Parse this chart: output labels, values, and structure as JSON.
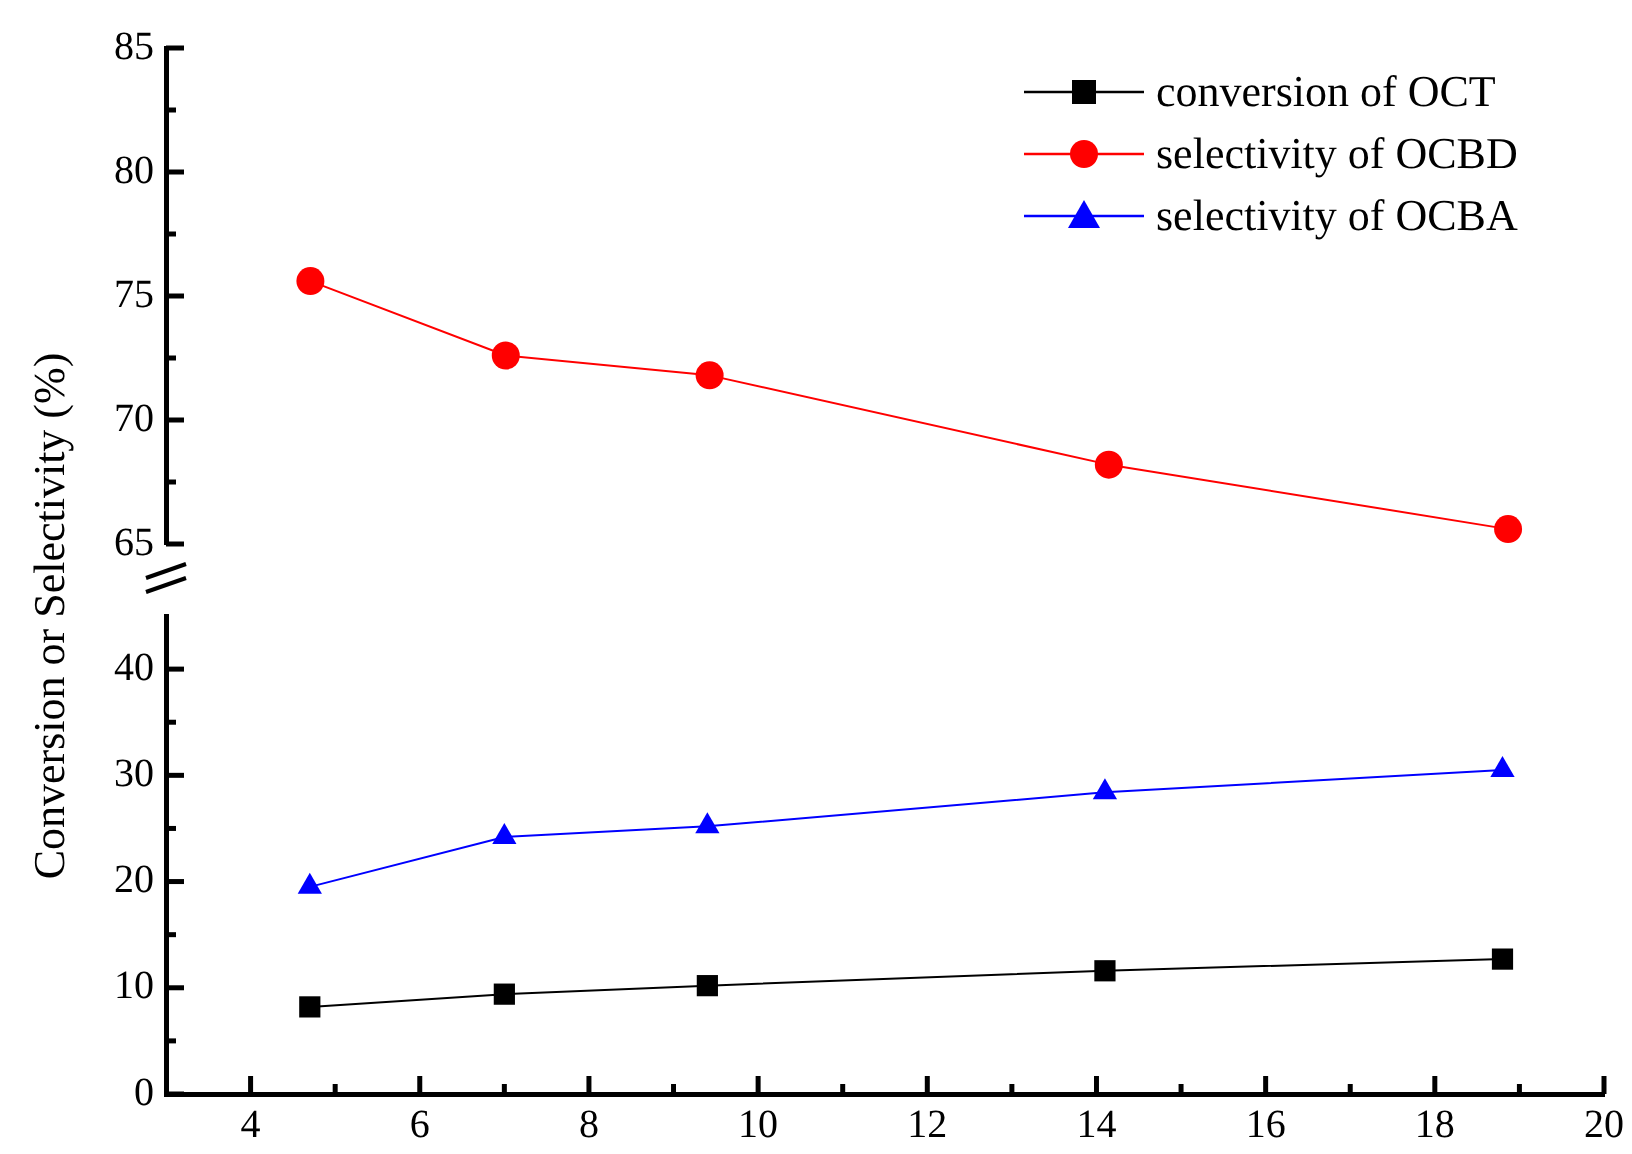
{
  "chart_data": [
    {
      "type": "line",
      "x": [
        4.7,
        7,
        9.4,
        14.1,
        18.8
      ],
      "xlim": [
        3,
        20
      ],
      "ylim": [
        65,
        85
      ],
      "yticks": [
        65,
        {
          "value": 67.5,
          "label": null
        },
        70,
        {
          "value": 72.5,
          "label": null
        },
        75,
        {
          "value": 77.5,
          "label": null
        },
        80,
        {
          "value": 82.5,
          "label": null
        },
        85
      ],
      "tick_labels": "y",
      "legend": "top right",
      "series": [
        {
          "name": "selectivity of OCBD",
          "color": "#ff0000",
          "marker": "circle",
          "values": [
            75.6,
            72.6,
            71.8,
            68.2,
            65.6
          ]
        }
      ]
    },
    {
      "type": "line",
      "x": [
        4.7,
        7,
        9.4,
        14.1,
        18.8
      ],
      "ylabel": "Conversion or Selectivity (%)",
      "xlim": [
        3,
        20
      ],
      "xticks": [
        4,
        {
          "value": 5,
          "label": null
        },
        6,
        {
          "value": 7,
          "label": null
        },
        8,
        {
          "value": 9,
          "label": null
        },
        10,
        {
          "value": 11,
          "label": null
        },
        12,
        {
          "value": 13,
          "label": null
        },
        14,
        {
          "value": 15,
          "label": null
        },
        16,
        {
          "value": 17,
          "label": null
        },
        18,
        {
          "value": 19,
          "label": null
        },
        20
      ],
      "ylim": [
        0,
        45
      ],
      "yticks": [
        0,
        {
          "value": 5,
          "label": null
        },
        10,
        {
          "value": 15,
          "label": null
        },
        20,
        {
          "value": 25,
          "label": null
        },
        30,
        {
          "value": 35,
          "label": null
        },
        40
      ],
      "legend": "top right",
      "series": [
        {
          "name": "conversion of OCT",
          "color": "#000000",
          "marker": "square",
          "values": [
            8.2,
            9.4,
            10.2,
            11.6,
            12.7
          ]
        },
        {
          "name": "selectivity of OCBA",
          "color": "#0000ff",
          "marker": "triangle",
          "values": [
            19.5,
            24.2,
            25.2,
            28.4,
            30.5
          ]
        }
      ]
    }
  ]
}
